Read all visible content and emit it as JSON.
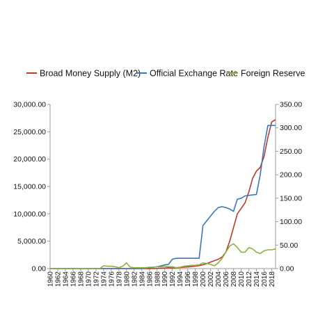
{
  "chart_data": {
    "type": "line",
    "title": "",
    "xlabel": "",
    "ylabel": "",
    "y2label": "",
    "x": [
      1960,
      1961,
      1962,
      1963,
      1964,
      1965,
      1966,
      1967,
      1968,
      1969,
      1970,
      1971,
      1972,
      1973,
      1974,
      1975,
      1976,
      1977,
      1978,
      1979,
      1980,
      1981,
      1982,
      1983,
      1984,
      1985,
      1986,
      1987,
      1988,
      1989,
      1990,
      1991,
      1992,
      1993,
      1994,
      1995,
      1996,
      1997,
      1998,
      1999,
      2000,
      2001,
      2002,
      2003,
      2004,
      2005,
      2006,
      2007,
      2008,
      2009,
      2010,
      2011,
      2012,
      2013,
      2014,
      2015,
      2016,
      2017,
      2018,
      2019
    ],
    "x_tick_labels": [
      "1960",
      "1962",
      "1964",
      "1966",
      "1968",
      "1970",
      "1972",
      "1974",
      "1976",
      "1978",
      "1980",
      "1982",
      "1984",
      "1986",
      "1988",
      "1990",
      "1992",
      "1994",
      "1996",
      "1998",
      "2000",
      "2002",
      "2004",
      "2006",
      "2008",
      "2010",
      "2012",
      "2014",
      "2016",
      "2018"
    ],
    "xlim": [
      1960,
      2019
    ],
    "y_left": {
      "lim": [
        0,
        30000
      ],
      "ticks": [
        "0.00",
        "5,000.00",
        "10,000.00",
        "15,000.00",
        "20,000.00",
        "25,000.00",
        "30,000.00"
      ],
      "tick_values": [
        0,
        5000,
        10000,
        15000,
        20000,
        25000,
        30000
      ]
    },
    "y_right": {
      "lim": [
        0,
        350
      ],
      "ticks": [
        "0.00",
        "50.00",
        "100.00",
        "150.00",
        "200.00",
        "250.00",
        "300.00",
        "350.00"
      ],
      "tick_values": [
        0,
        50,
        100,
        150,
        200,
        250,
        300,
        350
      ]
    },
    "legend_position": "top",
    "grid": false,
    "series": [
      {
        "name": "Broad Money Supply (M2)",
        "color": "#c0392b",
        "axis": "left",
        "values": [
          0,
          0,
          0,
          0,
          0,
          0,
          0,
          0,
          0,
          0,
          0,
          0,
          0,
          0,
          0,
          0,
          0,
          0,
          0,
          0,
          0,
          0,
          0,
          0,
          0,
          0,
          0,
          20,
          40,
          80,
          100,
          150,
          100,
          150,
          200,
          250,
          300,
          350,
          450,
          550,
          700,
          900,
          1200,
          1450,
          1700,
          2100,
          3000,
          5000,
          7500,
          10000,
          11000,
          12000,
          14000,
          16500,
          17800,
          18500,
          20500,
          24000,
          26800,
          27200
        ]
      },
      {
        "name": "Official Exchange Rate",
        "color": "#3c76b5",
        "axis": "right",
        "values": [
          0,
          0,
          0,
          0,
          0,
          0,
          0,
          0,
          0,
          0,
          0,
          0,
          0,
          0,
          0,
          0,
          0,
          0,
          0,
          0,
          0,
          0,
          0,
          0,
          0,
          1,
          2,
          3,
          4,
          6,
          8,
          9,
          20,
          22,
          22,
          22,
          22,
          22,
          22,
          22,
          92,
          102,
          112,
          122,
          130,
          132,
          130,
          127,
          122,
          148,
          150,
          155,
          156,
          157,
          158,
          200,
          260,
          305,
          305,
          305
        ]
      },
      {
        "name": "Foreign Reserve",
        "color": "#8bb13e",
        "axis": "right",
        "values": [
          0,
          0,
          0,
          0,
          0,
          0,
          0,
          0,
          0,
          0,
          0,
          0,
          0,
          0,
          6,
          5,
          5,
          4,
          2,
          5,
          12,
          3,
          2,
          2,
          2,
          2,
          3,
          3,
          4,
          4,
          5,
          4,
          4,
          2,
          3,
          5,
          6,
          7,
          7,
          8,
          12,
          11,
          9,
          6,
          12,
          22,
          35,
          48,
          53,
          45,
          35,
          35,
          45,
          42,
          35,
          32,
          38,
          40,
          40,
          42
        ]
      }
    ]
  }
}
